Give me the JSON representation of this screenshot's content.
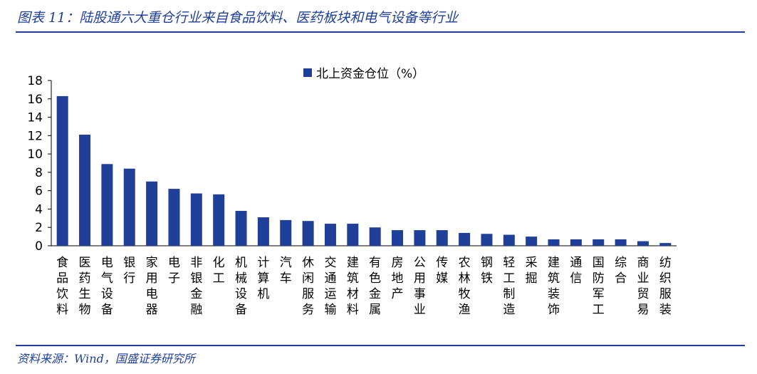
{
  "header": {
    "title": "图表 11：陆股通六大重仓行业来自食品饮料、医药板块和电气设备等行业"
  },
  "footer": {
    "source": "资料来源：Wind，国盛证券研究所"
  },
  "colors": {
    "bar": "#1f3f99",
    "accent": "#1f3f99"
  },
  "chart_data": {
    "type": "bar",
    "legend": "北上资金仓位（%）",
    "legend_position": "top-center",
    "categories": [
      "食品饮料",
      "医药生物",
      "电气设备",
      "银行",
      "家用电器",
      "电子",
      "非银金融",
      "化工",
      "机械设备",
      "计算机",
      "汽车",
      "休闲服务",
      "交通运输",
      "建筑材料",
      "有色金属",
      "房地产",
      "公用事业",
      "传媒",
      "农林牧渔",
      "钢铁",
      "轻工制造",
      "采掘",
      "建筑装饰",
      "通信",
      "国防军工",
      "综合",
      "商业贸易",
      "纺织服装"
    ],
    "series": [
      {
        "name": "北上资金仓位（%）",
        "values": [
          16.3,
          12.1,
          8.9,
          8.4,
          7.0,
          6.2,
          5.7,
          5.6,
          3.8,
          3.1,
          2.8,
          2.7,
          2.4,
          2.4,
          2.0,
          1.7,
          1.7,
          1.7,
          1.4,
          1.3,
          1.2,
          1.0,
          0.7,
          0.7,
          0.7,
          0.7,
          0.5,
          0.3
        ]
      }
    ],
    "ylim": [
      0,
      18
    ],
    "yticks": [
      0,
      2,
      4,
      6,
      8,
      10,
      12,
      14,
      16,
      18
    ],
    "grid": false
  }
}
